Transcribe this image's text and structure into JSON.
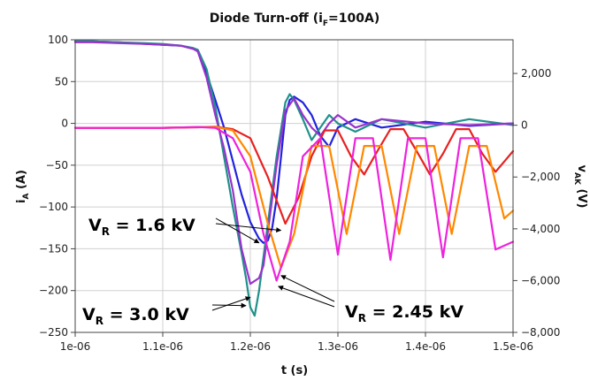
{
  "chart_data": {
    "type": "line",
    "title": {
      "main": "Diode Turn-off (i",
      "sub": "F",
      "tail": "=100A)"
    },
    "xlabel": "t (s)",
    "ylabel_left": {
      "main": "i",
      "sub": "A",
      "tail": " (A)"
    },
    "ylabel_right": {
      "main": "v",
      "sub": "AK",
      "tail": " (V)"
    },
    "xlim": [
      1e-06,
      1.5e-06
    ],
    "ylim_left": [
      -250,
      100
    ],
    "ylim_right": [
      -8000,
      3300
    ],
    "x_ticks": [
      1e-06,
      1.1e-06,
      1.2e-06,
      1.3e-06,
      1.4e-06,
      1.5e-06
    ],
    "x_tick_labels": [
      "1e-06",
      "1.1e-06",
      "1.2e-06",
      "1.3e-06",
      "1.4e-06",
      "1.5e-06"
    ],
    "y_left_ticks": [
      100,
      50,
      0,
      -50,
      -100,
      -150,
      -200,
      -250
    ],
    "y_left_tick_labels": [
      "100",
      "50",
      "0",
      "−50",
      "−100",
      "−150",
      "−200",
      "−250"
    ],
    "y_right_ticks": [
      2000,
      0,
      -2000,
      -4000,
      -6000,
      -8000
    ],
    "y_right_tick_labels": [
      "2,000",
      "0",
      "−2,000",
      "−4,000",
      "−6,000",
      "−8,000"
    ],
    "grid": true,
    "series": [
      {
        "color": "#2222dd",
        "axis": "left",
        "x": [
          1e-06,
          1.02e-06,
          1.05e-06,
          1.08e-06,
          1.1e-06,
          1.12e-06,
          1.135e-06,
          1.14e-06,
          1.15e-06,
          1.16e-06,
          1.17e-06,
          1.18e-06,
          1.19e-06,
          1.2e-06,
          1.21e-06,
          1.215e-06,
          1.22e-06,
          1.225e-06,
          1.23e-06,
          1.235e-06,
          1.24e-06,
          1.245e-06,
          1.25e-06,
          1.26e-06,
          1.27e-06,
          1.28e-06,
          1.29e-06,
          1.3e-06,
          1.32e-06,
          1.35e-06,
          1.4e-06,
          1.45e-06,
          1.5e-06
        ],
        "y": [
          98,
          98,
          97,
          95,
          94,
          93,
          90,
          86,
          60,
          28,
          -5,
          -45,
          -85,
          -118,
          -138,
          -143,
          -140,
          -125,
          -90,
          -40,
          10,
          28,
          32,
          25,
          10,
          -15,
          -28,
          -5,
          5,
          -5,
          2,
          -3,
          0
        ]
      },
      {
        "color": "#20908a",
        "axis": "left",
        "x": [
          1e-06,
          1.02e-06,
          1.05e-06,
          1.08e-06,
          1.1e-06,
          1.12e-06,
          1.135e-06,
          1.14e-06,
          1.15e-06,
          1.16e-06,
          1.17e-06,
          1.18e-06,
          1.19e-06,
          1.195e-06,
          1.2e-06,
          1.205e-06,
          1.21e-06,
          1.22e-06,
          1.23e-06,
          1.24e-06,
          1.245e-06,
          1.25e-06,
          1.26e-06,
          1.27e-06,
          1.28e-06,
          1.29e-06,
          1.3e-06,
          1.32e-06,
          1.35e-06,
          1.4e-06,
          1.45e-06,
          1.5e-06
        ],
        "y": [
          98,
          98,
          97,
          96,
          95,
          93,
          90,
          88,
          65,
          20,
          -40,
          -100,
          -155,
          -185,
          -220,
          -230,
          -200,
          -120,
          -40,
          25,
          35,
          28,
          5,
          -20,
          -5,
          10,
          0,
          -10,
          5,
          -5,
          5,
          -2
        ]
      },
      {
        "color": "#9933cc",
        "axis": "left",
        "x": [
          1e-06,
          1.02e-06,
          1.05e-06,
          1.08e-06,
          1.1e-06,
          1.12e-06,
          1.135e-06,
          1.14e-06,
          1.15e-06,
          1.16e-06,
          1.17e-06,
          1.18e-06,
          1.19e-06,
          1.2e-06,
          1.21e-06,
          1.215e-06,
          1.22e-06,
          1.23e-06,
          1.24e-06,
          1.25e-06,
          1.26e-06,
          1.27e-06,
          1.28e-06,
          1.29e-06,
          1.3e-06,
          1.32e-06,
          1.35e-06,
          1.4e-06,
          1.45e-06,
          1.5e-06
        ],
        "y": [
          97,
          97,
          96,
          95,
          94,
          93,
          89,
          86,
          55,
          10,
          -30,
          -80,
          -150,
          -192,
          -185,
          -170,
          -130,
          -50,
          15,
          30,
          10,
          -5,
          -15,
          0,
          10,
          -5,
          5,
          0,
          -2,
          0
        ]
      },
      {
        "color": "#e82020",
        "axis": "right",
        "x": [
          1e-06,
          1.05e-06,
          1.1e-06,
          1.14e-06,
          1.16e-06,
          1.18e-06,
          1.2e-06,
          1.22e-06,
          1.24e-06,
          1.255e-06,
          1.27e-06,
          1.285e-06,
          1.3e-06,
          1.315e-06,
          1.33e-06,
          1.345e-06,
          1.36e-06,
          1.375e-06,
          1.39e-06,
          1.405e-06,
          1.42e-06,
          1.435e-06,
          1.45e-06,
          1.465e-06,
          1.48e-06,
          1.495e-06,
          1.5e-06
        ],
        "y": [
          -100,
          -100,
          -100,
          -80,
          -60,
          -150,
          -500,
          -2000,
          -3800,
          -2800,
          -1200,
          -200,
          -200,
          -1200,
          -1900,
          -1000,
          -150,
          -150,
          -1000,
          -1900,
          -1100,
          -150,
          -150,
          -1100,
          -1800,
          -1200,
          -1000
        ]
      },
      {
        "color": "#ff8800",
        "axis": "right",
        "x": [
          1e-06,
          1.05e-06,
          1.1e-06,
          1.14e-06,
          1.16e-06,
          1.18e-06,
          1.2e-06,
          1.22e-06,
          1.235e-06,
          1.25e-06,
          1.27e-06,
          1.29e-06,
          1.31e-06,
          1.33e-06,
          1.35e-06,
          1.37e-06,
          1.39e-06,
          1.41e-06,
          1.43e-06,
          1.45e-06,
          1.47e-06,
          1.49e-06,
          1.5e-06
        ],
        "y": [
          -100,
          -100,
          -100,
          -70,
          -60,
          -200,
          -1200,
          -3800,
          -5500,
          -4200,
          -800,
          -800,
          -4200,
          -800,
          -800,
          -4200,
          -800,
          -800,
          -4200,
          -800,
          -800,
          -3600,
          -3300
        ]
      },
      {
        "color": "#ee22dd",
        "axis": "right",
        "x": [
          1e-06,
          1.05e-06,
          1.1e-06,
          1.14e-06,
          1.16e-06,
          1.18e-06,
          1.2e-06,
          1.215e-06,
          1.23e-06,
          1.245e-06,
          1.26e-06,
          1.28e-06,
          1.3e-06,
          1.32e-06,
          1.34e-06,
          1.36e-06,
          1.38e-06,
          1.4e-06,
          1.42e-06,
          1.44e-06,
          1.46e-06,
          1.48e-06,
          1.5e-06
        ],
        "y": [
          -100,
          -100,
          -100,
          -70,
          -100,
          -500,
          -1800,
          -4200,
          -6000,
          -4500,
          -1200,
          -500,
          -5000,
          -500,
          -500,
          -5200,
          -500,
          -500,
          -5100,
          -500,
          -500,
          -4800,
          -4500
        ]
      }
    ],
    "annotations": [
      {
        "main": "V",
        "sub": "R",
        "tail": " = 1.6 kV",
        "arrow_targets_x": [
          1.21e-06,
          1.235e-06
        ],
        "arrow_targets_y": [
          -143,
          -128
        ]
      },
      {
        "main": "V",
        "sub": "R",
        "tail": " = 3.0 kV",
        "arrow_targets_x": [
          1.195e-06,
          1.2e-06
        ],
        "arrow_targets_y": [
          -218,
          -208
        ]
      },
      {
        "main": "V",
        "sub": "R",
        "tail": " = 2.45 kV",
        "arrow_targets_x": [
          1.235e-06,
          1.232e-06
        ],
        "arrow_targets_y": [
          -182,
          -195
        ]
      }
    ]
  }
}
